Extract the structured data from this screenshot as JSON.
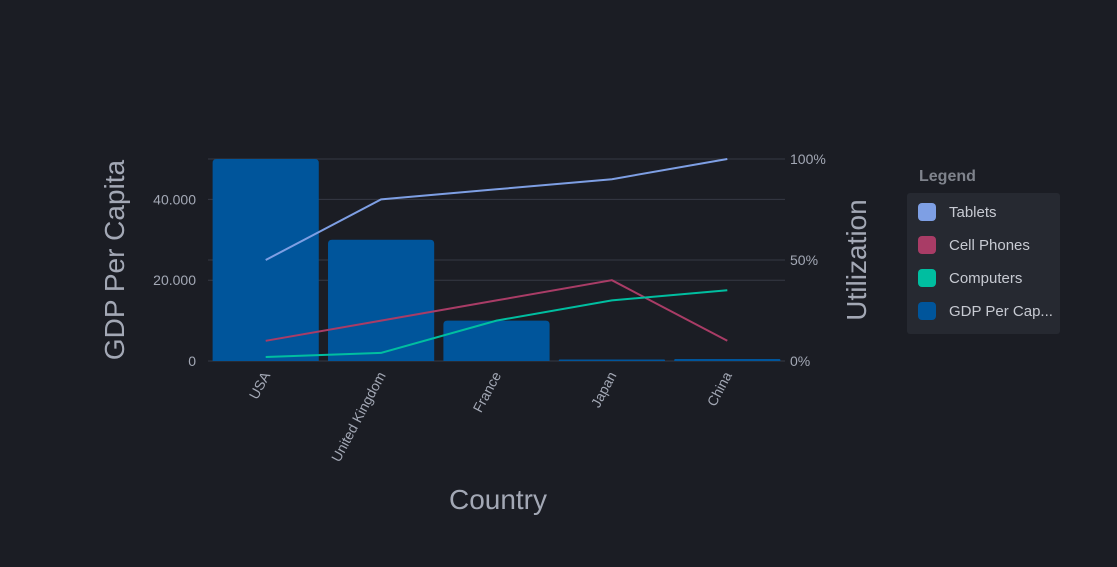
{
  "colors": {
    "background": "#1b1d24",
    "grid": "#363945",
    "tick_text": "#a3a8b5",
    "bar": "#00559b"
  },
  "legend": {
    "title": "Legend",
    "items": [
      {
        "label": "Tablets",
        "color": "#7e9fe4"
      },
      {
        "label": "Cell Phones",
        "color": "#a93c66"
      },
      {
        "label": "Computers",
        "color": "#00bea0"
      },
      {
        "label": "GDP Per Cap...",
        "color": "#00559b"
      }
    ]
  },
  "chart_data": {
    "type": "bar",
    "categories": [
      "USA",
      "United Kingdom",
      "France",
      "Japan",
      "China"
    ],
    "xlabel": "Country",
    "ylabel": "GDP Per Capita",
    "y2label": "Utilization",
    "ylim": [
      0,
      50000
    ],
    "y_ticks": [
      {
        "value": 0,
        "label": "0"
      },
      {
        "value": 20000,
        "label": "20.000"
      },
      {
        "value": 40000,
        "label": "40.000"
      }
    ],
    "y2lim": [
      0,
      100
    ],
    "y2_ticks": [
      {
        "value": 0,
        "label": "0%"
      },
      {
        "value": 50,
        "label": "50%"
      },
      {
        "value": 100,
        "label": "100%"
      }
    ],
    "grid": true,
    "legend_position": "right",
    "bar_series": {
      "name": "GDP Per Capita",
      "axis": "left",
      "values": [
        50000,
        30000,
        10000,
        0,
        500
      ]
    },
    "line_series": [
      {
        "name": "Tablets",
        "axis": "right",
        "color": "#7e9fe4",
        "values": [
          50,
          80,
          85,
          90,
          100
        ]
      },
      {
        "name": "Cell Phones",
        "axis": "right",
        "color": "#a93c66",
        "values": [
          10,
          20,
          30,
          40,
          10
        ]
      },
      {
        "name": "Computers",
        "axis": "right",
        "color": "#00bea0",
        "values": [
          2,
          4,
          20,
          30,
          35
        ]
      }
    ]
  }
}
